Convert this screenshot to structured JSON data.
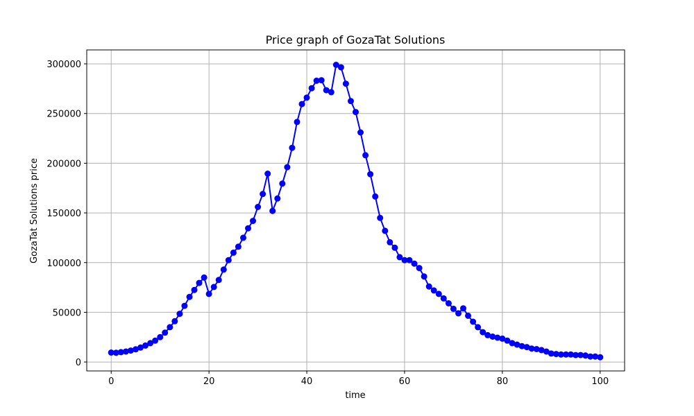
{
  "chart_data": {
    "type": "line",
    "title": "Price graph of GozaTat Solutions",
    "xlabel": "time",
    "ylabel": "GozaTat Solutions price",
    "xlim": [
      -5,
      105
    ],
    "ylim": [
      -9000,
      314000
    ],
    "xticks": [
      0,
      20,
      40,
      60,
      80,
      100
    ],
    "yticks": [
      0,
      50000,
      100000,
      150000,
      200000,
      250000,
      300000
    ],
    "grid": true,
    "line_color": "#0000ff",
    "marker": "circle",
    "series": [
      {
        "x": [
          0,
          1,
          2,
          3,
          4,
          5,
          6,
          7,
          8,
          9,
          10,
          11,
          12,
          13,
          14,
          15,
          16,
          17,
          18,
          19,
          20,
          21,
          22,
          23,
          24,
          25,
          26,
          27,
          28,
          29,
          30,
          31,
          32,
          33,
          34,
          35,
          36,
          37,
          38,
          39,
          40,
          41,
          42,
          43,
          44,
          45,
          46,
          47,
          48,
          49,
          50,
          51,
          52,
          53,
          54,
          55,
          56,
          57,
          58,
          59,
          60,
          61,
          62,
          63,
          64,
          65,
          66,
          67,
          68,
          69,
          70,
          71,
          72,
          73,
          74,
          75,
          76,
          77,
          78,
          79,
          80,
          81,
          82,
          83,
          84,
          85,
          86,
          87,
          88,
          89,
          90,
          91,
          92,
          93,
          94,
          95,
          96,
          97,
          98,
          99,
          100
        ],
        "values": [
          9500,
          9300,
          9900,
          10500,
          11500,
          12800,
          14500,
          16500,
          19000,
          21500,
          25000,
          29500,
          35000,
          41000,
          48500,
          56500,
          65500,
          72500,
          79500,
          85000,
          68500,
          75500,
          82500,
          93000,
          102500,
          110000,
          116000,
          125000,
          134500,
          142000,
          156000,
          169000,
          189500,
          152000,
          164500,
          179500,
          196000,
          215500,
          241500,
          259500,
          266000,
          275500,
          283000,
          283500,
          273500,
          271500,
          299000,
          296500,
          280000,
          262500,
          251500,
          231000,
          208000,
          189000,
          166500,
          145000,
          132000,
          120500,
          115000,
          105500,
          102500,
          102500,
          99000,
          94500,
          86000,
          76000,
          72000,
          68500,
          64000,
          59000,
          53500,
          49000,
          54000,
          46500,
          40500,
          35000,
          30000,
          27000,
          25500,
          24500,
          23500,
          21500,
          19000,
          17500,
          16000,
          15000,
          13500,
          13000,
          12000,
          10500,
          8500,
          8000,
          7500,
          7500,
          7500,
          7000,
          7000,
          6500,
          5500,
          5500,
          4800
        ]
      }
    ]
  }
}
